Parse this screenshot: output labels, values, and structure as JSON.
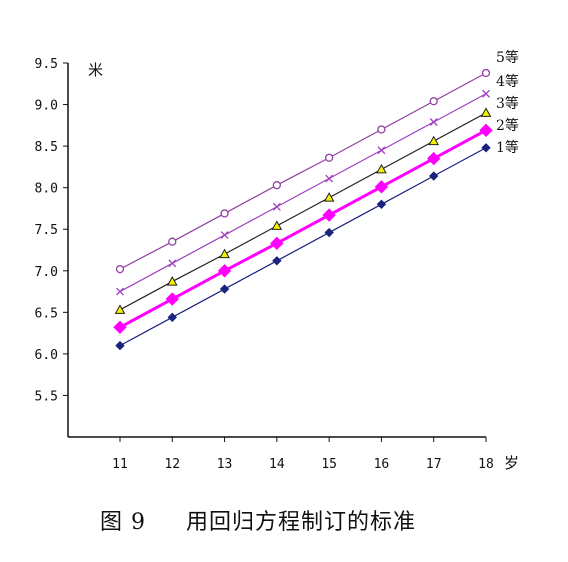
{
  "chart_data": {
    "type": "line",
    "title": "",
    "caption_prefix": "图",
    "caption_number": "9",
    "caption_text": "用回归方程制订的标准",
    "xlabel": "岁",
    "ylabel": "米",
    "x": [
      11,
      12,
      13,
      14,
      15,
      16,
      17,
      18
    ],
    "x_tick_labels": [
      "11",
      "12",
      "13",
      "14",
      "15",
      "16",
      "17",
      "18"
    ],
    "ylim": [
      5.0,
      9.5
    ],
    "y_ticks": [
      5.5,
      6.0,
      6.5,
      7.0,
      7.5,
      8.0,
      8.5,
      9.0,
      9.5
    ],
    "y_tick_labels": [
      "5.5",
      "6.0",
      "6.5",
      "7.0",
      "7.5",
      "8.0",
      "8.5",
      "9.0",
      "9.5"
    ],
    "grid": false,
    "legend_position": "right end of lines",
    "series": [
      {
        "name": "1等",
        "color": "#1a237e",
        "marker": "diamond",
        "values": [
          6.1,
          6.44,
          6.78,
          7.12,
          7.46,
          7.8,
          8.14,
          8.48
        ]
      },
      {
        "name": "2等",
        "color": "#ff00ff",
        "marker": "diamond-large",
        "values": [
          6.32,
          6.66,
          7.0,
          7.33,
          7.67,
          8.01,
          8.35,
          8.69
        ]
      },
      {
        "name": "3等",
        "color": "#222222",
        "marker": "triangle",
        "values": [
          6.53,
          6.87,
          7.2,
          7.54,
          7.88,
          8.22,
          8.56,
          8.9
        ]
      },
      {
        "name": "4等",
        "color": "#a040c0",
        "marker": "x",
        "values": [
          6.75,
          7.09,
          7.43,
          7.77,
          8.11,
          8.45,
          8.79,
          9.13
        ]
      },
      {
        "name": "5等",
        "color": "#9040a0",
        "marker": "circle",
        "values": [
          7.02,
          7.35,
          7.69,
          8.03,
          8.36,
          8.7,
          9.04,
          9.38
        ]
      }
    ]
  }
}
